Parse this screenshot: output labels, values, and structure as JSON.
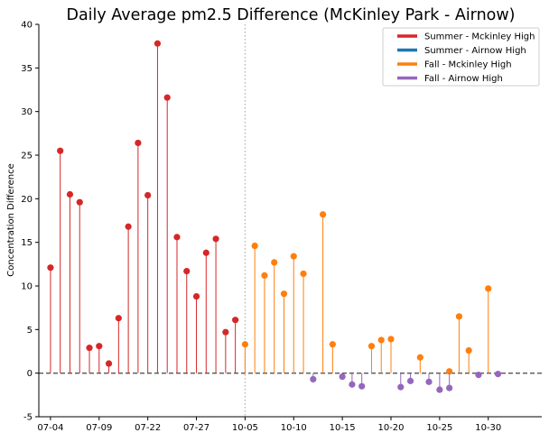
{
  "chart_data": {
    "type": "stem",
    "title": "Daily Average pm2.5 Difference (McKinley Park - Airnow)",
    "xlabel": "",
    "ylabel": "Concentration Difference",
    "ylim": [
      -5,
      40
    ],
    "yticks": [
      -5,
      0,
      5,
      10,
      15,
      20,
      25,
      30,
      35,
      40
    ],
    "xlim": [
      -1.2,
      50.5
    ],
    "xticks": [
      {
        "index": 0,
        "label": "07-04"
      },
      {
        "index": 5,
        "label": "07-09"
      },
      {
        "index": 10,
        "label": "07-22"
      },
      {
        "index": 15,
        "label": "07-27"
      },
      {
        "index": 20,
        "label": "10-05"
      },
      {
        "index": 25,
        "label": "10-10"
      },
      {
        "index": 30,
        "label": "10-15"
      },
      {
        "index": 35,
        "label": "10-20"
      },
      {
        "index": 40,
        "label": "10-25"
      },
      {
        "index": 45,
        "label": "10-30"
      }
    ],
    "season_divider_index": 20,
    "baseline": 0,
    "legend_position": "top-right",
    "series": [
      {
        "name": "Summer - Mckinley High",
        "color": "#d62728",
        "points": [
          [
            0,
            12.1
          ],
          [
            1,
            25.5
          ],
          [
            2,
            20.5
          ],
          [
            3,
            19.6
          ],
          [
            4,
            2.9
          ],
          [
            5,
            3.1
          ],
          [
            6,
            1.1
          ],
          [
            7,
            6.3
          ],
          [
            8,
            16.8
          ],
          [
            9,
            26.4
          ],
          [
            10,
            20.4
          ],
          [
            11,
            37.8
          ],
          [
            12,
            31.6
          ],
          [
            13,
            15.6
          ],
          [
            14,
            11.7
          ],
          [
            15,
            8.8
          ],
          [
            16,
            13.8
          ],
          [
            17,
            15.4
          ],
          [
            18,
            4.7
          ],
          [
            19,
            6.1
          ]
        ]
      },
      {
        "name": "Summer - Airnow High",
        "color": "#1f77b4",
        "points": []
      },
      {
        "name": "Fall - Mckinley High",
        "color": "#ff7f0e",
        "points": [
          [
            20,
            3.3
          ],
          [
            21,
            14.6
          ],
          [
            22,
            11.2
          ],
          [
            23,
            12.7
          ],
          [
            24,
            9.1
          ],
          [
            25,
            13.4
          ],
          [
            26,
            11.4
          ],
          [
            28,
            18.2
          ],
          [
            29,
            3.3
          ],
          [
            33,
            3.1
          ],
          [
            34,
            3.8
          ],
          [
            35,
            3.9
          ],
          [
            38,
            1.8
          ],
          [
            41,
            0.2
          ],
          [
            42,
            6.5
          ],
          [
            43,
            2.6
          ],
          [
            45,
            9.7
          ]
        ]
      },
      {
        "name": "Fall - Airnow High",
        "color": "#9467bd",
        "points": [
          [
            27,
            -0.7
          ],
          [
            30,
            -0.4
          ],
          [
            31,
            -1.3
          ],
          [
            32,
            -1.5
          ],
          [
            36,
            -1.6
          ],
          [
            37,
            -0.9
          ],
          [
            38.9,
            -1.0
          ],
          [
            40,
            -1.9
          ],
          [
            41,
            -1.7
          ],
          [
            44,
            -0.2
          ],
          [
            46,
            -0.1
          ]
        ]
      }
    ]
  }
}
